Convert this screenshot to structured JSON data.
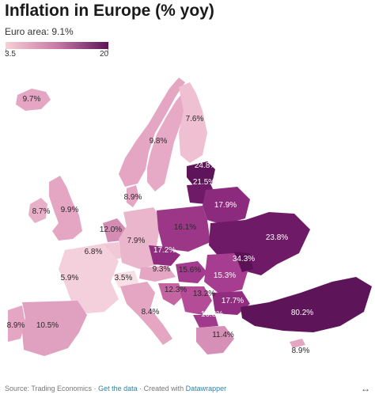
{
  "title": "Inflation in Europe (% yoy)",
  "subtitle": "Euro area: 9.1%",
  "legend": {
    "min": "3.5",
    "max": "20",
    "color_low": "#f7d0d4",
    "color_high": "#5e1459"
  },
  "regions": [
    {
      "name": "Iceland",
      "value": "9.7%"
    },
    {
      "name": "Norway",
      "value": "9.8%"
    },
    {
      "name": "Finland",
      "value": "7.6%"
    },
    {
      "name": "Estonia",
      "value": "24.8%"
    },
    {
      "name": "Lithuania",
      "value": "21.5%"
    },
    {
      "name": "Denmark",
      "value": "8.9%"
    },
    {
      "name": "Ireland",
      "value": "8.7%"
    },
    {
      "name": "United Kingdom",
      "value": "9.9%"
    },
    {
      "name": "Belarus",
      "value": "17.9%"
    },
    {
      "name": "Netherlands",
      "value": "12.0%"
    },
    {
      "name": "Germany",
      "value": "7.9%"
    },
    {
      "name": "Poland",
      "value": "16.1%"
    },
    {
      "name": "Ukraine",
      "value": "23.8%"
    },
    {
      "name": "Luxembourg",
      "value": "6.8%"
    },
    {
      "name": "Czech Republic",
      "value": "17.2%"
    },
    {
      "name": "Moldova",
      "value": "34.3%"
    },
    {
      "name": "Austria",
      "value": "9.3%"
    },
    {
      "name": "Hungary",
      "value": "15.6%"
    },
    {
      "name": "Romania",
      "value": "15.3%"
    },
    {
      "name": "France",
      "value": "5.9%"
    },
    {
      "name": "Switzerland",
      "value": "3.5%"
    },
    {
      "name": "Croatia",
      "value": "12.3%"
    },
    {
      "name": "Serbia",
      "value": "13.2%"
    },
    {
      "name": "Bulgaria",
      "value": "17.7%"
    },
    {
      "name": "Italy",
      "value": "8.4%"
    },
    {
      "name": "North Macedonia",
      "value": "16.8%"
    },
    {
      "name": "Portugal",
      "value": "8.9%"
    },
    {
      "name": "Spain",
      "value": "10.5%"
    },
    {
      "name": "Greece",
      "value": "11.4%"
    },
    {
      "name": "Turkey",
      "value": "80.2%"
    },
    {
      "name": "Cyprus",
      "value": "8.9%"
    }
  ],
  "footer": {
    "source": "Source: Trading Economics · ",
    "get_data": "Get the data",
    "middle": " · Created with ",
    "tool": "Datawrapper"
  },
  "expand_icon": "↔"
}
